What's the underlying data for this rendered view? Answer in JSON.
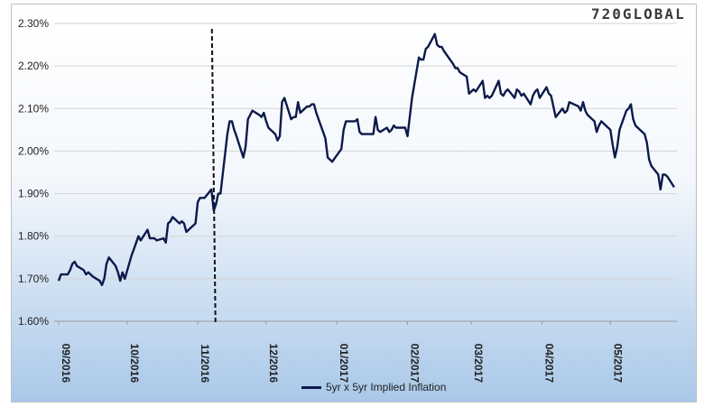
{
  "chart_data": {
    "type": "line",
    "title": "",
    "xlabel": "",
    "ylabel": "",
    "ylim": [
      1.6,
      2.3
    ],
    "yticks": [
      "1.60%",
      "1.70%",
      "1.80%",
      "1.90%",
      "2.00%",
      "2.10%",
      "2.20%",
      "2.30%"
    ],
    "ytick_values": [
      1.6,
      1.7,
      1.8,
      1.9,
      2.0,
      2.1,
      2.2,
      2.3
    ],
    "xticks": [
      "09/2016",
      "10/2016",
      "11/2016",
      "12/2016",
      "01/2017",
      "02/2017",
      "03/2017",
      "04/2017",
      "05/2017"
    ],
    "xtick_dates": [
      "2016-09-01",
      "2016-10-01",
      "2016-11-01",
      "2016-12-01",
      "2017-01-01",
      "2017-02-01",
      "2017-03-01",
      "2017-04-01",
      "2017-05-01"
    ],
    "x_range": [
      "2016-09-01",
      "2017-05-29"
    ],
    "grid": "horizontal",
    "legend": "bottom-center",
    "annotations": [
      {
        "type": "vertical-dashed-line",
        "x": "2016-11-08"
      }
    ],
    "series": [
      {
        "name": "5yr x 5yr Implied Inflation",
        "color": "#0b1a4a",
        "points": [
          [
            "2016-09-01",
            1.695
          ],
          [
            "2016-09-02",
            1.71
          ],
          [
            "2016-09-05",
            1.71
          ],
          [
            "2016-09-06",
            1.72
          ],
          [
            "2016-09-07",
            1.735
          ],
          [
            "2016-09-08",
            1.74
          ],
          [
            "2016-09-09",
            1.73
          ],
          [
            "2016-09-12",
            1.72
          ],
          [
            "2016-09-13",
            1.71
          ],
          [
            "2016-09-14",
            1.715
          ],
          [
            "2016-09-15",
            1.71
          ],
          [
            "2016-09-16",
            1.705
          ],
          [
            "2016-09-19",
            1.695
          ],
          [
            "2016-09-20",
            1.685
          ],
          [
            "2016-09-21",
            1.7
          ],
          [
            "2016-09-22",
            1.735
          ],
          [
            "2016-09-23",
            1.75
          ],
          [
            "2016-09-26",
            1.73
          ],
          [
            "2016-09-27",
            1.715
          ],
          [
            "2016-09-28",
            1.695
          ],
          [
            "2016-09-29",
            1.715
          ],
          [
            "2016-09-30",
            1.7
          ],
          [
            "2016-10-03",
            1.755
          ],
          [
            "2016-10-04",
            1.77
          ],
          [
            "2016-10-05",
            1.785
          ],
          [
            "2016-10-06",
            1.8
          ],
          [
            "2016-10-07",
            1.79
          ],
          [
            "2016-10-10",
            1.815
          ],
          [
            "2016-10-11",
            1.795
          ],
          [
            "2016-10-12",
            1.795
          ],
          [
            "2016-10-13",
            1.795
          ],
          [
            "2016-10-14",
            1.79
          ],
          [
            "2016-10-17",
            1.795
          ],
          [
            "2016-10-18",
            1.785
          ],
          [
            "2016-10-19",
            1.83
          ],
          [
            "2016-10-20",
            1.835
          ],
          [
            "2016-10-21",
            1.845
          ],
          [
            "2016-10-24",
            1.83
          ],
          [
            "2016-10-25",
            1.835
          ],
          [
            "2016-10-26",
            1.83
          ],
          [
            "2016-10-27",
            1.81
          ],
          [
            "2016-10-28",
            1.815
          ],
          [
            "2016-10-31",
            1.83
          ],
          [
            "2016-11-01",
            1.88
          ],
          [
            "2016-11-02",
            1.89
          ],
          [
            "2016-11-03",
            1.89
          ],
          [
            "2016-11-04",
            1.89
          ],
          [
            "2016-11-07",
            1.91
          ],
          [
            "2016-11-08",
            1.86
          ],
          [
            "2016-11-09",
            1.875
          ],
          [
            "2016-11-10",
            1.9
          ],
          [
            "2016-11-11",
            1.9
          ],
          [
            "2016-11-14",
            2.04
          ],
          [
            "2016-11-15",
            2.07
          ],
          [
            "2016-11-16",
            2.07
          ],
          [
            "2016-11-17",
            2.05
          ],
          [
            "2016-11-18",
            2.035
          ],
          [
            "2016-11-21",
            1.985
          ],
          [
            "2016-11-22",
            2.01
          ],
          [
            "2016-11-23",
            2.075
          ],
          [
            "2016-11-25",
            2.095
          ],
          [
            "2016-11-28",
            2.085
          ],
          [
            "2016-11-29",
            2.08
          ],
          [
            "2016-11-30",
            2.09
          ],
          [
            "2016-12-01",
            2.07
          ],
          [
            "2016-12-02",
            2.055
          ],
          [
            "2016-12-05",
            2.04
          ],
          [
            "2016-12-06",
            2.025
          ],
          [
            "2016-12-07",
            2.035
          ],
          [
            "2016-12-08",
            2.115
          ],
          [
            "2016-12-09",
            2.125
          ],
          [
            "2016-12-12",
            2.075
          ],
          [
            "2016-12-13",
            2.08
          ],
          [
            "2016-12-14",
            2.08
          ],
          [
            "2016-12-15",
            2.115
          ],
          [
            "2016-12-16",
            2.09
          ],
          [
            "2016-12-19",
            2.105
          ],
          [
            "2016-12-20",
            2.105
          ],
          [
            "2016-12-21",
            2.11
          ],
          [
            "2016-12-22",
            2.11
          ],
          [
            "2016-12-23",
            2.09
          ],
          [
            "2016-12-27",
            2.03
          ],
          [
            "2016-12-28",
            1.985
          ],
          [
            "2016-12-29",
            1.98
          ],
          [
            "2016-12-30",
            1.975
          ],
          [
            "2017-01-03",
            2.005
          ],
          [
            "2017-01-04",
            2.05
          ],
          [
            "2017-01-05",
            2.07
          ],
          [
            "2017-01-06",
            2.07
          ],
          [
            "2017-01-09",
            2.07
          ],
          [
            "2017-01-10",
            2.075
          ],
          [
            "2017-01-11",
            2.045
          ],
          [
            "2017-01-12",
            2.04
          ],
          [
            "2017-01-13",
            2.04
          ],
          [
            "2017-01-17",
            2.04
          ],
          [
            "2017-01-18",
            2.08
          ],
          [
            "2017-01-19",
            2.05
          ],
          [
            "2017-01-20",
            2.045
          ],
          [
            "2017-01-23",
            2.055
          ],
          [
            "2017-01-24",
            2.045
          ],
          [
            "2017-01-25",
            2.05
          ],
          [
            "2017-01-26",
            2.06
          ],
          [
            "2017-01-27",
            2.055
          ],
          [
            "2017-01-30",
            2.055
          ],
          [
            "2017-01-31",
            2.055
          ],
          [
            "2017-02-01",
            2.035
          ],
          [
            "2017-02-02",
            2.08
          ],
          [
            "2017-02-03",
            2.125
          ],
          [
            "2017-02-06",
            2.22
          ],
          [
            "2017-02-07",
            2.215
          ],
          [
            "2017-02-08",
            2.215
          ],
          [
            "2017-02-09",
            2.24
          ],
          [
            "2017-02-10",
            2.245
          ],
          [
            "2017-02-13",
            2.275
          ],
          [
            "2017-02-14",
            2.25
          ],
          [
            "2017-02-15",
            2.245
          ],
          [
            "2017-02-16",
            2.245
          ],
          [
            "2017-02-17",
            2.235
          ],
          [
            "2017-02-21",
            2.205
          ],
          [
            "2017-02-22",
            2.195
          ],
          [
            "2017-02-23",
            2.195
          ],
          [
            "2017-02-24",
            2.185
          ],
          [
            "2017-02-27",
            2.175
          ],
          [
            "2017-02-28",
            2.135
          ],
          [
            "2017-03-01",
            2.14
          ],
          [
            "2017-03-02",
            2.145
          ],
          [
            "2017-03-03",
            2.14
          ],
          [
            "2017-03-06",
            2.165
          ],
          [
            "2017-03-07",
            2.125
          ],
          [
            "2017-03-08",
            2.13
          ],
          [
            "2017-03-09",
            2.125
          ],
          [
            "2017-03-10",
            2.13
          ],
          [
            "2017-03-13",
            2.165
          ],
          [
            "2017-03-14",
            2.135
          ],
          [
            "2017-03-15",
            2.13
          ],
          [
            "2017-03-16",
            2.14
          ],
          [
            "2017-03-17",
            2.145
          ],
          [
            "2017-03-20",
            2.125
          ],
          [
            "2017-03-21",
            2.145
          ],
          [
            "2017-03-22",
            2.14
          ],
          [
            "2017-03-23",
            2.13
          ],
          [
            "2017-03-24",
            2.135
          ],
          [
            "2017-03-27",
            2.11
          ],
          [
            "2017-03-28",
            2.13
          ],
          [
            "2017-03-29",
            2.14
          ],
          [
            "2017-03-30",
            2.145
          ],
          [
            "2017-03-31",
            2.125
          ],
          [
            "2017-04-03",
            2.15
          ],
          [
            "2017-04-04",
            2.135
          ],
          [
            "2017-04-05",
            2.13
          ],
          [
            "2017-04-06",
            2.105
          ],
          [
            "2017-04-07",
            2.08
          ],
          [
            "2017-04-10",
            2.1
          ],
          [
            "2017-04-11",
            2.09
          ],
          [
            "2017-04-12",
            2.095
          ],
          [
            "2017-04-13",
            2.115
          ],
          [
            "2017-04-17",
            2.105
          ],
          [
            "2017-04-18",
            2.095
          ],
          [
            "2017-04-19",
            2.115
          ],
          [
            "2017-04-20",
            2.095
          ],
          [
            "2017-04-21",
            2.085
          ],
          [
            "2017-04-24",
            2.07
          ],
          [
            "2017-04-25",
            2.045
          ],
          [
            "2017-04-26",
            2.06
          ],
          [
            "2017-04-27",
            2.07
          ],
          [
            "2017-04-28",
            2.065
          ],
          [
            "2017-05-01",
            2.05
          ],
          [
            "2017-05-02",
            2.015
          ],
          [
            "2017-05-03",
            1.985
          ],
          [
            "2017-05-04",
            2.01
          ],
          [
            "2017-05-05",
            2.05
          ],
          [
            "2017-05-08",
            2.095
          ],
          [
            "2017-05-09",
            2.1
          ],
          [
            "2017-05-10",
            2.11
          ],
          [
            "2017-05-11",
            2.075
          ],
          [
            "2017-05-12",
            2.06
          ],
          [
            "2017-05-15",
            2.045
          ],
          [
            "2017-05-16",
            2.04
          ],
          [
            "2017-05-17",
            2.02
          ],
          [
            "2017-05-18",
            1.98
          ],
          [
            "2017-05-19",
            1.965
          ],
          [
            "2017-05-22",
            1.945
          ],
          [
            "2017-05-23",
            1.91
          ],
          [
            "2017-05-24",
            1.945
          ],
          [
            "2017-05-25",
            1.945
          ],
          [
            "2017-05-26",
            1.94
          ],
          [
            "2017-05-29",
            1.915
          ]
        ]
      }
    ]
  },
  "branding": {
    "logo": "720GLOBAL"
  }
}
